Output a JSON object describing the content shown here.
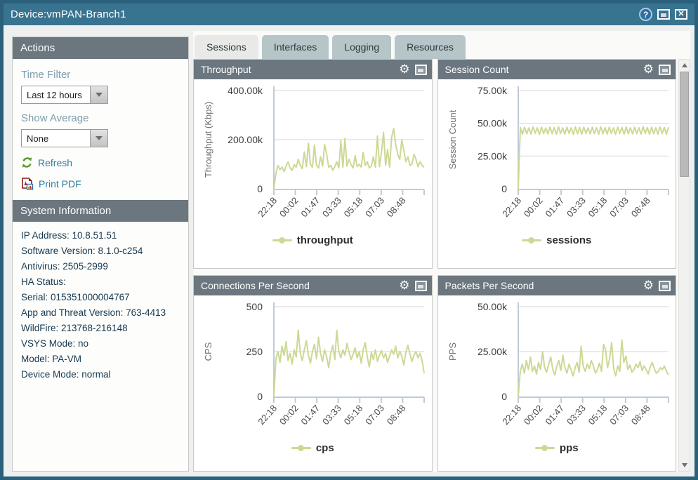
{
  "window": {
    "title": "Device:vmPAN-Branch1"
  },
  "titlebar": {
    "icons": [
      "help-icon",
      "restore-icon",
      "close-icon"
    ]
  },
  "sidebar": {
    "actions": {
      "header": "Actions",
      "time_filter_label": "Time Filter",
      "time_filter_value": "Last 12 hours",
      "show_average_label": "Show Average",
      "show_average_value": "None",
      "refresh_label": "Refresh",
      "print_pdf_label": "Print PDF"
    },
    "system_information": {
      "header": "System Information",
      "lines": [
        "IP Address: 10.8.51.51",
        "Software Version: 8.1.0-c254",
        "Antivirus: 2505-2999",
        "HA Status:",
        "Serial: 015351000004767",
        "App and Threat Version: 763-4413",
        "WildFire: 213768-216148",
        "VSYS Mode: no",
        "Model: PA-VM",
        "Device Mode: normal"
      ]
    }
  },
  "tabs": [
    {
      "label": "Sessions",
      "active": true
    },
    {
      "label": "Interfaces",
      "active": false
    },
    {
      "label": "Logging",
      "active": false
    },
    {
      "label": "Resources",
      "active": false
    }
  ],
  "colors": {
    "accent_green": "#ccd994",
    "titlebar": "#387390",
    "panel_header": "#6b767f",
    "window_border": "#2a607c",
    "link": "#2f7da0"
  },
  "chart_data": [
    {
      "type": "line",
      "title": "Throughput",
      "ylabel": "Throughput (Kbps)",
      "ylim": [
        0,
        400000
      ],
      "yticks": [
        {
          "v": 0,
          "label": "0"
        },
        {
          "v": 200000,
          "label": "200.00k"
        },
        {
          "v": 400000,
          "label": "400.00k"
        }
      ],
      "x_labels": [
        "22:18",
        "00:02",
        "01:47",
        "03:33",
        "05:18",
        "07:03",
        "08:48"
      ],
      "legend_position": "bottom",
      "grid": true,
      "series": [
        {
          "name": "throughput",
          "color": "#ccd994",
          "values": [
            0,
            62000,
            95000,
            78000,
            88000,
            70000,
            92000,
            110000,
            85000,
            75000,
            98000,
            88000,
            120000,
            95000,
            82000,
            150000,
            90000,
            185000,
            100000,
            88000,
            178000,
            95000,
            85000,
            130000,
            92000,
            180000,
            140000,
            88000,
            95000,
            75000,
            90000,
            110000,
            85000,
            195000,
            88000,
            205000,
            92000,
            120000,
            98000,
            85000,
            135000,
            90000,
            100000,
            88000,
            148000,
            95000,
            110000,
            85000,
            92000,
            130000,
            88000,
            215000,
            90000,
            150000,
            230000,
            95000,
            160000,
            88000,
            210000,
            245000,
            180000,
            140000,
            120000,
            200000,
            155000,
            110000,
            130000,
            95000,
            100000,
            140000,
            120000,
            90000,
            110000,
            95000,
            88000
          ]
        }
      ]
    },
    {
      "type": "line",
      "title": "Session Count",
      "ylabel": "Session Count",
      "ylim": [
        0,
        75000
      ],
      "yticks": [
        {
          "v": 0,
          "label": "0"
        },
        {
          "v": 25000,
          "label": "25.00k"
        },
        {
          "v": 50000,
          "label": "50.00k"
        },
        {
          "v": 75000,
          "label": "75.00k"
        }
      ],
      "x_labels": [
        "22:18",
        "00:02",
        "01:47",
        "03:33",
        "05:18",
        "07:03",
        "08:48"
      ],
      "legend_position": "bottom",
      "grid": true,
      "series": [
        {
          "name": "sessions",
          "color": "#ccd994",
          "values": [
            0,
            46800,
            41600,
            47000,
            42000,
            46500,
            41800,
            47200,
            42300,
            46600,
            41500,
            47000,
            42100,
            46400,
            41900,
            47100,
            42000,
            46700,
            41600,
            47300,
            42200,
            46500,
            41800,
            47000,
            42400,
            46600,
            41500,
            47200,
            42000,
            46800,
            41700,
            47100,
            42300,
            46500,
            41900,
            47000,
            42100,
            46600,
            41600,
            47200,
            42000,
            46700,
            41800,
            47000,
            42200,
            46500,
            41500,
            47100,
            42400,
            46800,
            41700,
            47200,
            42000,
            46500,
            41900,
            47000,
            42100,
            46600,
            41800,
            47300,
            42200,
            46700,
            41600,
            47000,
            42000,
            46500,
            41800,
            47100,
            42300,
            46800,
            41700,
            47000
          ]
        }
      ]
    },
    {
      "type": "line",
      "title": "Connections Per Second",
      "ylabel": "CPS",
      "ylim": [
        0,
        500
      ],
      "yticks": [
        {
          "v": 0,
          "label": "0"
        },
        {
          "v": 250,
          "label": "250"
        },
        {
          "v": 500,
          "label": "500"
        }
      ],
      "x_labels": [
        "22:18",
        "00:02",
        "01:47",
        "03:33",
        "05:18",
        "07:03",
        "08:48"
      ],
      "legend_position": "bottom",
      "grid": true,
      "series": [
        {
          "name": "cps",
          "color": "#ccd994",
          "values": [
            0,
            210,
            250,
            190,
            280,
            230,
            305,
            200,
            240,
            180,
            260,
            220,
            370,
            240,
            200,
            260,
            310,
            230,
            185,
            250,
            290,
            210,
            330,
            240,
            195,
            260,
            220,
            160,
            240,
            285,
            205,
            368,
            250,
            215,
            260,
            230,
            295,
            250,
            205,
            235,
            270,
            215,
            250,
            185,
            260,
            300,
            220,
            165,
            245,
            205,
            260,
            195,
            230,
            255,
            215,
            240,
            190,
            225,
            260,
            235,
            280,
            215,
            250,
            225,
            175,
            245,
            285,
            235,
            195,
            230,
            250,
            215,
            240,
            200,
            130
          ]
        }
      ]
    },
    {
      "type": "line",
      "title": "Packets Per Second",
      "ylabel": "PPS",
      "ylim": [
        0,
        50000
      ],
      "yticks": [
        {
          "v": 0,
          "label": "0"
        },
        {
          "v": 25000,
          "label": "25.00k"
        },
        {
          "v": 50000,
          "label": "50.00k"
        }
      ],
      "x_labels": [
        "22:18",
        "00:02",
        "01:47",
        "03:33",
        "05:18",
        "07:03",
        "08:48"
      ],
      "legend_position": "bottom",
      "grid": true,
      "series": [
        {
          "name": "pps",
          "color": "#ccd994",
          "values": [
            0,
            14000,
            18000,
            13000,
            20000,
            15000,
            22000,
            14000,
            17000,
            12500,
            19000,
            15000,
            25000,
            16000,
            13500,
            18000,
            22000,
            15000,
            12000,
            17000,
            20000,
            14500,
            23000,
            16000,
            13000,
            18000,
            15000,
            11500,
            16000,
            19000,
            13500,
            28000,
            17000,
            14000,
            18000,
            15500,
            20000,
            17000,
            13000,
            15000,
            18500,
            14000,
            29000,
            26000,
            16000,
            21000,
            30000,
            15500,
            11500,
            17000,
            14000,
            31500,
            19000,
            22500,
            15000,
            17500,
            13500,
            15000,
            18000,
            16000,
            19500,
            14500,
            17000,
            15000,
            12500,
            16500,
            19000,
            15500,
            13000,
            14000,
            16000,
            15000,
            17000,
            14000,
            12000
          ]
        }
      ]
    }
  ]
}
